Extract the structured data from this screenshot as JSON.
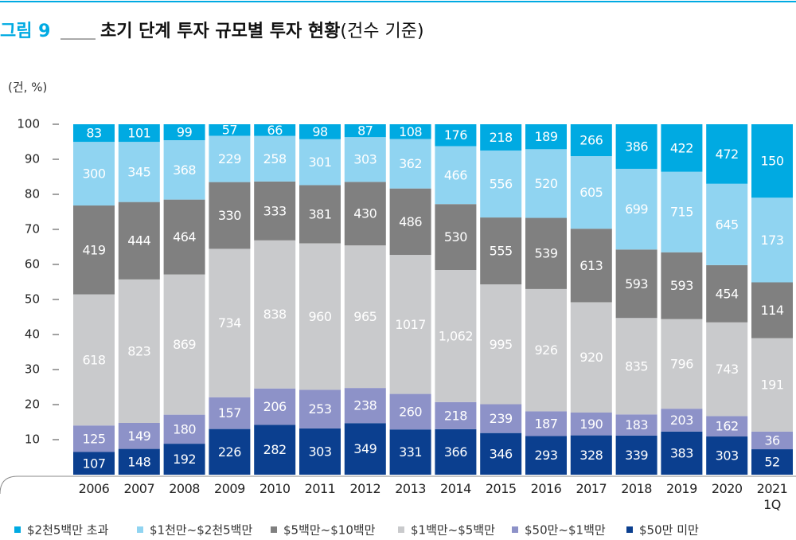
{
  "chart_data": {
    "type": "bar",
    "stacking": "percent",
    "title_prefix": "그림 9",
    "title": "초기 단계 투자 규모별 투자 현황",
    "subtitle": "(건수 기준)",
    "y_label": "(건, %)",
    "categories": [
      "2006",
      "2007",
      "2008",
      "2009",
      "2010",
      "2011",
      "2012",
      "2013",
      "2014",
      "2015",
      "2016",
      "2017",
      "2018",
      "2019",
      "2020",
      "2021\n1Q"
    ],
    "ylim": [
      0,
      100
    ],
    "yticks": [
      10,
      20,
      30,
      40,
      50,
      60,
      70,
      80,
      90,
      100
    ],
    "series": [
      {
        "name": "$50만 미만",
        "color": "#0b3f8f",
        "values": [
          107,
          148,
          192,
          226,
          282,
          303,
          349,
          331,
          366,
          346,
          293,
          328,
          339,
          383,
          303,
          52
        ]
      },
      {
        "name": "$50만~$1백만",
        "color": "#8d92c8",
        "values": [
          125,
          149,
          180,
          157,
          206,
          253,
          238,
          260,
          218,
          239,
          187,
          190,
          183,
          203,
          162,
          36
        ]
      },
      {
        "name": "$1백만~$5백만",
        "color": "#c9cacc",
        "values": [
          618,
          823,
          869,
          734,
          838,
          960,
          965,
          1017,
          1062,
          995,
          926,
          920,
          835,
          796,
          743,
          191
        ],
        "value_labels": [
          "618",
          "823",
          "869",
          "734",
          "838",
          "960",
          "965",
          "1017",
          "1,062",
          "995",
          "926",
          "920",
          "835",
          "796",
          "743",
          "191"
        ]
      },
      {
        "name": "$5백만~$10백만",
        "color": "#808080",
        "values": [
          419,
          444,
          464,
          330,
          333,
          381,
          430,
          486,
          530,
          555,
          539,
          613,
          593,
          593,
          454,
          114
        ]
      },
      {
        "name": "$1천만~$2천5백만",
        "color": "#90d4f1",
        "values": [
          300,
          345,
          368,
          229,
          258,
          301,
          303,
          362,
          466,
          556,
          520,
          605,
          699,
          715,
          645,
          173
        ]
      },
      {
        "name": "$2천5백만 초과",
        "color": "#00aae2",
        "values": [
          83,
          101,
          99,
          57,
          66,
          98,
          87,
          108,
          176,
          218,
          189,
          266,
          386,
          422,
          472,
          150
        ]
      }
    ]
  }
}
